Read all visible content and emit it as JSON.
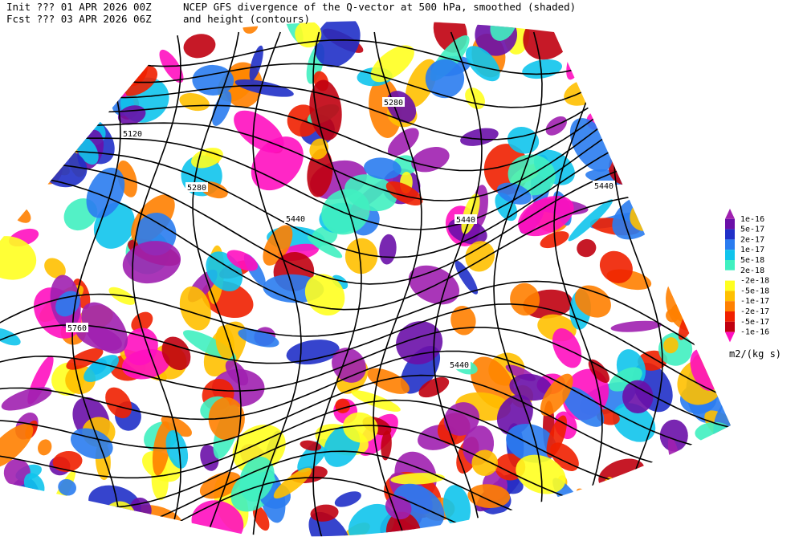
{
  "header": {
    "init": "Init  ??? 01 APR 2026 00Z",
    "fcst": "Fcst ??? 03 APR 2026 06Z",
    "title": "NCEP GFS divergence of the Q-vector at 500 hPa, smoothed (shaded)",
    "subtitle": "and height (contours)"
  },
  "contour_labels": [
    5120,
    5280,
    5280,
    5440,
    5440,
    5440,
    5440,
    5760
  ],
  "colorbar": {
    "labels": [
      "1e-16",
      "5e-17",
      "2e-17",
      "1e-17",
      "5e-18",
      "2e-18",
      "-2e-18",
      "-5e-18",
      "-1e-17",
      "-2e-17",
      "-5e-17",
      "-1e-16"
    ],
    "colors": [
      "#a020b0",
      "#6a10a8",
      "#2030c8",
      "#2a7cf0",
      "#10c4ec",
      "#40f0c0",
      "#ffffff",
      "#ffff20",
      "#ffc000",
      "#ff8000",
      "#f02000",
      "#c00010",
      "#ff10c0"
    ],
    "units": "m2/(kg s)"
  }
}
